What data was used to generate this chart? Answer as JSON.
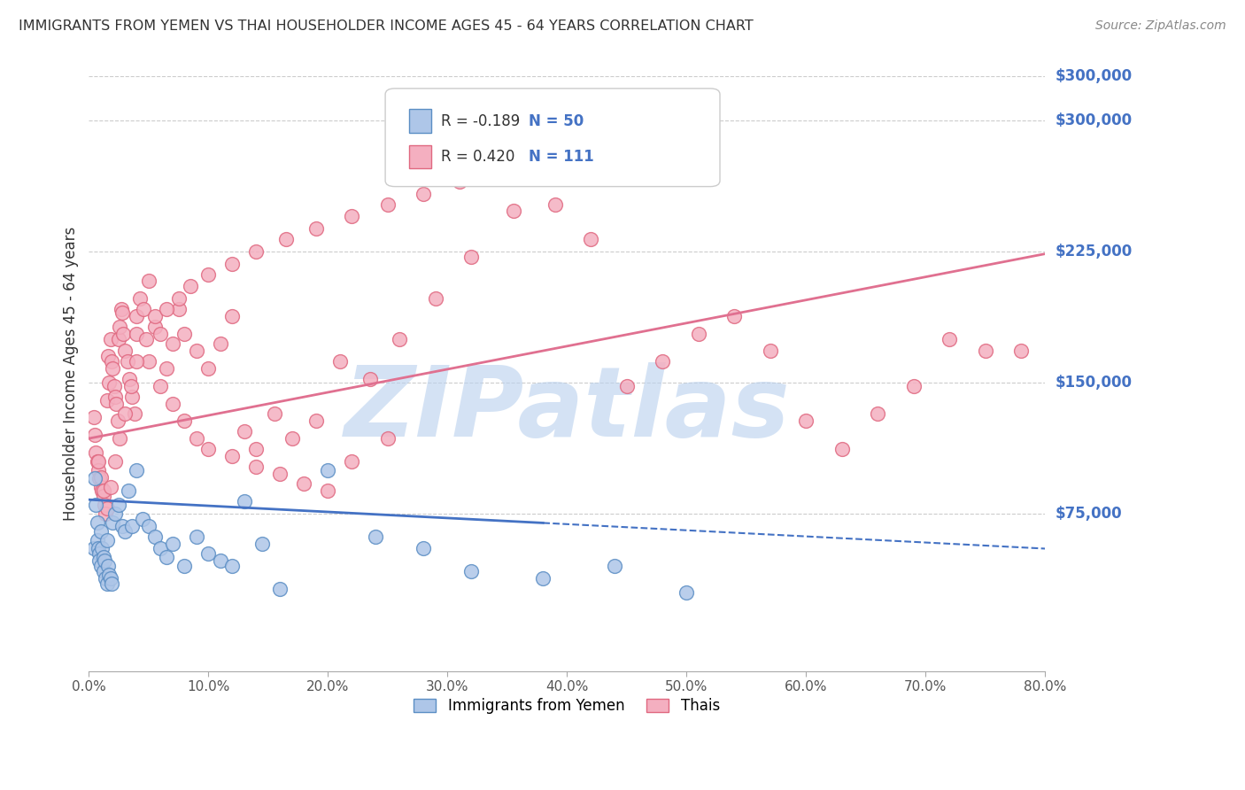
{
  "title": "IMMIGRANTS FROM YEMEN VS THAI HOUSEHOLDER INCOME AGES 45 - 64 YEARS CORRELATION CHART",
  "source": "Source: ZipAtlas.com",
  "ylabel": "Householder Income Ages 45 - 64 years",
  "ytick_labels": [
    "$75,000",
    "$150,000",
    "$225,000",
    "$300,000"
  ],
  "ytick_values": [
    75000,
    150000,
    225000,
    300000
  ],
  "ymax": 325000,
  "ymin": -15000,
  "xmin": 0.0,
  "xmax": 0.8,
  "xtick_vals": [
    0.0,
    0.1,
    0.2,
    0.3,
    0.4,
    0.5,
    0.6,
    0.7,
    0.8
  ],
  "xtick_labels": [
    "0.0%",
    "10.0%",
    "20.0%",
    "30.0%",
    "40.0%",
    "50.0%",
    "60.0%",
    "70.0%",
    "80.0%"
  ],
  "legend_r_yemen": "R = -0.189",
  "legend_n_yemen": "N = 50",
  "legend_r_thai": "R = 0.420",
  "legend_n_thai": "N = 111",
  "legend_label_yemen": "Immigrants from Yemen",
  "legend_label_thai": "Thais",
  "watermark": "ZIPatlas",
  "watermark_color": "#b8d0ee",
  "title_color": "#333333",
  "source_color": "#888888",
  "ylabel_color": "#333333",
  "ytick_color": "#4472c4",
  "grid_color": "#cccccc",
  "yemen_scatter_color": "#aec6e8",
  "yemen_scatter_edge": "#5b8ec4",
  "thai_scatter_color": "#f4afc0",
  "thai_scatter_edge": "#e06880",
  "yemen_line_color": "#4472c4",
  "thai_line_color": "#e07090",
  "background_color": "#ffffff",
  "yemen_scatter_x": [
    0.004,
    0.005,
    0.006,
    0.007,
    0.007,
    0.008,
    0.009,
    0.009,
    0.01,
    0.01,
    0.011,
    0.012,
    0.012,
    0.013,
    0.014,
    0.015,
    0.015,
    0.016,
    0.017,
    0.018,
    0.019,
    0.02,
    0.022,
    0.025,
    0.028,
    0.03,
    0.033,
    0.036,
    0.04,
    0.045,
    0.05,
    0.055,
    0.06,
    0.065,
    0.07,
    0.08,
    0.09,
    0.1,
    0.11,
    0.12,
    0.13,
    0.145,
    0.16,
    0.2,
    0.24,
    0.28,
    0.32,
    0.38,
    0.44,
    0.5
  ],
  "yemen_scatter_y": [
    55000,
    95000,
    80000,
    70000,
    60000,
    55000,
    52000,
    48000,
    65000,
    45000,
    55000,
    50000,
    42000,
    48000,
    38000,
    60000,
    35000,
    45000,
    40000,
    38000,
    35000,
    70000,
    75000,
    80000,
    68000,
    65000,
    88000,
    68000,
    100000,
    72000,
    68000,
    62000,
    55000,
    50000,
    58000,
    45000,
    62000,
    52000,
    48000,
    45000,
    82000,
    58000,
    32000,
    100000,
    62000,
    55000,
    42000,
    38000,
    45000,
    30000
  ],
  "thai_scatter_x": [
    0.004,
    0.005,
    0.006,
    0.007,
    0.008,
    0.009,
    0.01,
    0.011,
    0.012,
    0.013,
    0.014,
    0.015,
    0.016,
    0.017,
    0.018,
    0.019,
    0.02,
    0.021,
    0.022,
    0.023,
    0.024,
    0.025,
    0.026,
    0.027,
    0.028,
    0.029,
    0.03,
    0.032,
    0.034,
    0.036,
    0.038,
    0.04,
    0.043,
    0.046,
    0.05,
    0.055,
    0.06,
    0.065,
    0.07,
    0.075,
    0.08,
    0.09,
    0.1,
    0.11,
    0.12,
    0.13,
    0.14,
    0.155,
    0.17,
    0.19,
    0.21,
    0.235,
    0.26,
    0.29,
    0.32,
    0.355,
    0.39,
    0.42,
    0.45,
    0.48,
    0.51,
    0.54,
    0.57,
    0.6,
    0.63,
    0.66,
    0.69,
    0.72,
    0.75,
    0.78,
    0.04,
    0.05,
    0.06,
    0.07,
    0.08,
    0.09,
    0.1,
    0.12,
    0.14,
    0.16,
    0.18,
    0.2,
    0.22,
    0.25,
    0.008,
    0.01,
    0.012,
    0.015,
    0.018,
    0.022,
    0.026,
    0.03,
    0.035,
    0.04,
    0.048,
    0.055,
    0.065,
    0.075,
    0.085,
    0.1,
    0.12,
    0.14,
    0.165,
    0.19,
    0.22,
    0.25,
    0.28,
    0.31,
    0.345,
    0.38,
    0.42
  ],
  "thai_scatter_y": [
    130000,
    120000,
    110000,
    105000,
    100000,
    95000,
    90000,
    88000,
    85000,
    80000,
    75000,
    140000,
    165000,
    150000,
    175000,
    162000,
    158000,
    148000,
    142000,
    138000,
    128000,
    175000,
    182000,
    192000,
    190000,
    178000,
    168000,
    162000,
    152000,
    142000,
    132000,
    188000,
    198000,
    192000,
    208000,
    182000,
    178000,
    158000,
    172000,
    192000,
    178000,
    168000,
    158000,
    172000,
    188000,
    122000,
    112000,
    132000,
    118000,
    128000,
    162000,
    152000,
    175000,
    198000,
    222000,
    248000,
    252000,
    232000,
    148000,
    162000,
    178000,
    188000,
    168000,
    128000,
    112000,
    132000,
    148000,
    175000,
    168000,
    168000,
    178000,
    162000,
    148000,
    138000,
    128000,
    118000,
    112000,
    108000,
    102000,
    98000,
    92000,
    88000,
    105000,
    118000,
    105000,
    96000,
    88000,
    78000,
    90000,
    105000,
    118000,
    132000,
    148000,
    162000,
    175000,
    188000,
    192000,
    198000,
    205000,
    212000,
    218000,
    225000,
    232000,
    238000,
    245000,
    252000,
    258000,
    265000,
    272000,
    278000,
    285000
  ]
}
